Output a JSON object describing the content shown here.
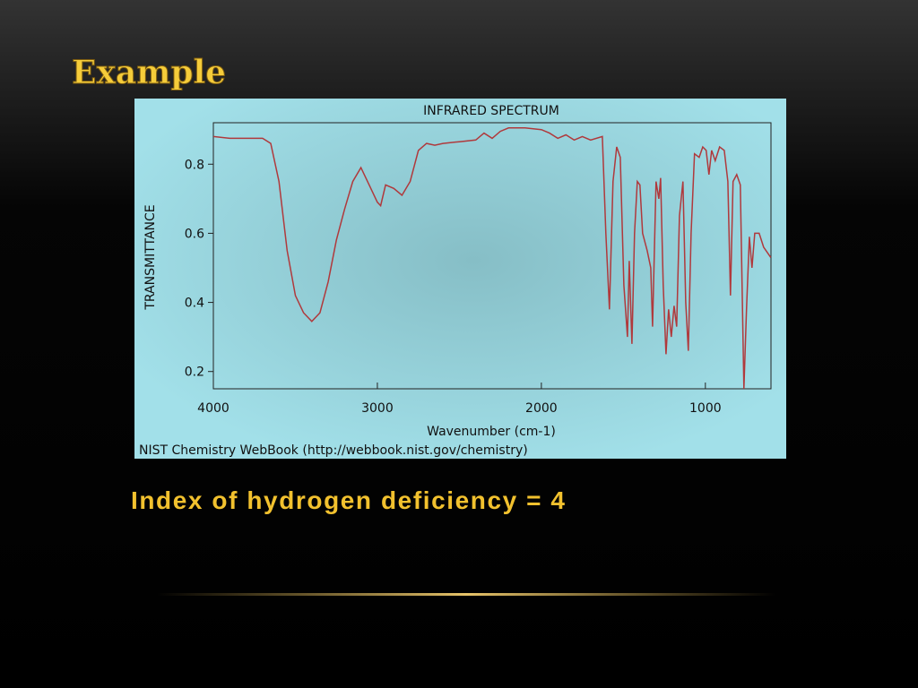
{
  "slide_title": "Example",
  "chart_data": {
    "type": "line",
    "title": "INFRARED SPECTRUM",
    "x_label": "Wavenumber (cm-1)",
    "y_label": "TRANSMITTANCE",
    "source": "NIST Chemistry WebBook (http://webbook.nist.gov/chemistry)",
    "xlim": [
      4000,
      600
    ],
    "ylim": [
      0.15,
      0.92
    ],
    "xticks": [
      4000,
      3000,
      2000,
      1000
    ],
    "yticks": [
      0.2,
      0.4,
      0.6,
      0.8
    ],
    "x": [
      4000,
      3900,
      3700,
      3650,
      3600,
      3550,
      3500,
      3450,
      3400,
      3350,
      3300,
      3250,
      3200,
      3150,
      3100,
      3050,
      3000,
      2980,
      2950,
      2900,
      2850,
      2800,
      2750,
      2700,
      2650,
      2600,
      2500,
      2400,
      2350,
      2300,
      2250,
      2200,
      2100,
      2000,
      1950,
      1900,
      1850,
      1800,
      1750,
      1700,
      1628,
      1607,
      1585,
      1563,
      1541,
      1519,
      1497,
      1475,
      1464,
      1448,
      1432,
      1415,
      1399,
      1383,
      1355,
      1333,
      1322,
      1301,
      1284,
      1273,
      1257,
      1240,
      1224,
      1208,
      1191,
      1175,
      1158,
      1137,
      1120,
      1104,
      1087,
      1066,
      1038,
      1016,
      995,
      978,
      962,
      940,
      913,
      885,
      863,
      847,
      831,
      809,
      787,
      765,
      749,
      732,
      716,
      699,
      672,
      645,
      601
    ],
    "series": [
      {
        "color": "#b0393c",
        "values": [
          0.88,
          0.875,
          0.875,
          0.86,
          0.75,
          0.55,
          0.42,
          0.37,
          0.345,
          0.37,
          0.46,
          0.58,
          0.67,
          0.75,
          0.79,
          0.74,
          0.69,
          0.68,
          0.74,
          0.73,
          0.71,
          0.75,
          0.84,
          0.86,
          0.855,
          0.86,
          0.865,
          0.87,
          0.89,
          0.875,
          0.895,
          0.905,
          0.905,
          0.9,
          0.89,
          0.875,
          0.885,
          0.87,
          0.88,
          0.87,
          0.88,
          0.6,
          0.38,
          0.75,
          0.85,
          0.82,
          0.45,
          0.3,
          0.52,
          0.28,
          0.6,
          0.75,
          0.74,
          0.6,
          0.55,
          0.5,
          0.33,
          0.75,
          0.7,
          0.76,
          0.45,
          0.25,
          0.38,
          0.3,
          0.39,
          0.33,
          0.65,
          0.75,
          0.4,
          0.26,
          0.6,
          0.83,
          0.82,
          0.85,
          0.84,
          0.77,
          0.84,
          0.81,
          0.85,
          0.84,
          0.75,
          0.42,
          0.75,
          0.77,
          0.74,
          0.15,
          0.38,
          0.59,
          0.5,
          0.6,
          0.6,
          0.56,
          0.53
        ]
      }
    ]
  },
  "caption": "Index of hydrogen deficiency = 4"
}
